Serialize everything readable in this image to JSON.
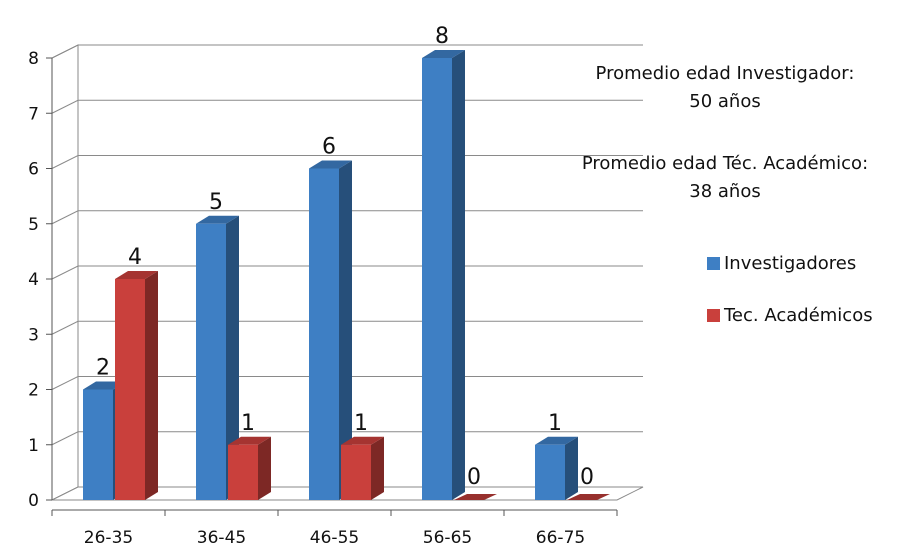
{
  "chart_data": {
    "type": "bar",
    "title": "",
    "xlabel": "",
    "ylabel": "",
    "categories": [
      "26-35",
      "36-45",
      "46-55",
      "56-65",
      "66-75"
    ],
    "series": [
      {
        "name": "Investigadores",
        "values": [
          2,
          5,
          6,
          8,
          1
        ],
        "color": "#3e7fc4"
      },
      {
        "name": "Tec. Académicos",
        "values": [
          4,
          1,
          1,
          0,
          0
        ],
        "color": "#c9403c"
      }
    ],
    "ylim": [
      0,
      8
    ],
    "yticks": [
      "0",
      "1",
      "2",
      "3",
      "4",
      "5",
      "6",
      "7",
      "8"
    ],
    "grid": true,
    "legend_position": "right",
    "style": "3d-column",
    "annotations": [
      {
        "line1": "Promedio edad Investigador:",
        "line2": "50 años"
      },
      {
        "line1": "Promedio edad Téc. Académico:",
        "line2": "38 años"
      }
    ]
  }
}
